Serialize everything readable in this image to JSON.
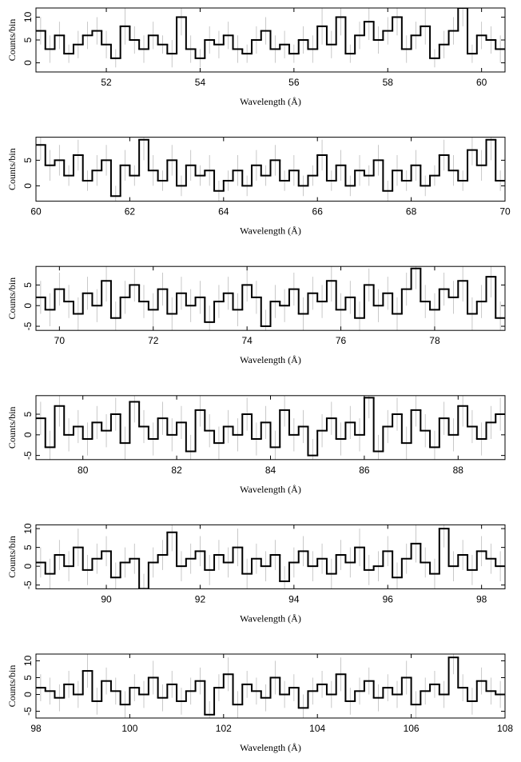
{
  "chart_data": [
    {
      "type": "histogram",
      "x_label": "Wavelength (Å)",
      "y_label": "Counts/bin",
      "bins": [
        50.5,
        50.7,
        50.9,
        51.1,
        51.3,
        51.5,
        51.7,
        51.9,
        52.1,
        52.3,
        52.5,
        52.7,
        52.9,
        53.1,
        53.3,
        53.5,
        53.7,
        53.9,
        54.1,
        54.3,
        54.5,
        54.7,
        54.9,
        55.1,
        55.3,
        55.5,
        55.7,
        55.9,
        56.1,
        56.3,
        56.5,
        56.7,
        56.9,
        57.1,
        57.3,
        57.5,
        57.7,
        57.9,
        58.1,
        58.3,
        58.5,
        58.7,
        58.9,
        59.1,
        59.3,
        59.5,
        59.7,
        59.9,
        60.1,
        60.3,
        60.5
      ],
      "values": [
        7,
        3,
        6,
        2,
        4,
        6,
        7,
        4,
        1,
        8,
        5,
        3,
        6,
        4,
        2,
        10,
        3,
        1,
        5,
        4,
        6,
        3,
        2,
        5,
        7,
        3,
        4,
        2,
        5,
        3,
        8,
        4,
        10,
        2,
        6,
        9,
        5,
        7,
        10,
        3,
        6,
        8,
        1,
        4,
        7,
        12,
        2,
        6,
        5,
        3
      ],
      "errors": [
        3,
        3,
        3,
        2,
        3,
        3,
        3,
        3,
        2,
        4,
        3,
        3,
        3,
        2,
        3,
        4,
        3,
        2,
        3,
        3,
        3,
        3,
        2,
        3,
        3,
        3,
        3,
        2,
        3,
        3,
        4,
        3,
        4,
        2,
        3,
        4,
        3,
        3,
        4,
        3,
        3,
        4,
        2,
        3,
        3,
        4,
        2,
        3,
        3,
        3
      ],
      "xlim": [
        50.5,
        60.5
      ],
      "ylim": [
        -2,
        12
      ],
      "xticks": [
        52,
        54,
        56,
        58,
        60
      ],
      "yticks": [
        0,
        5,
        10
      ]
    },
    {
      "type": "histogram",
      "x_label": "Wavelength (Å)",
      "y_label": "Counts/bin",
      "bins": [
        60,
        60.2,
        60.4,
        60.6,
        60.8,
        61,
        61.2,
        61.4,
        61.6,
        61.8,
        62,
        62.2,
        62.4,
        62.6,
        62.8,
        63,
        63.2,
        63.4,
        63.6,
        63.8,
        64,
        64.2,
        64.4,
        64.6,
        64.8,
        65,
        65.2,
        65.4,
        65.6,
        65.8,
        66,
        66.2,
        66.4,
        66.6,
        66.8,
        67,
        67.2,
        67.4,
        67.6,
        67.8,
        68,
        68.2,
        68.4,
        68.6,
        68.8,
        69,
        69.2,
        69.4,
        69.6,
        69.8,
        70
      ],
      "values": [
        8,
        4,
        5,
        2,
        6,
        1,
        3,
        5,
        -2,
        4,
        2,
        9,
        3,
        1,
        5,
        0,
        4,
        2,
        3,
        -1,
        1,
        3,
        0,
        4,
        2,
        5,
        1,
        3,
        0,
        2,
        6,
        1,
        4,
        0,
        3,
        2,
        5,
        -1,
        3,
        1,
        4,
        0,
        2,
        6,
        3,
        1,
        7,
        4,
        9,
        1
      ],
      "errors": [
        3,
        3,
        3,
        2,
        3,
        2,
        3,
        3,
        2,
        3,
        2,
        4,
        3,
        2,
        3,
        2,
        3,
        2,
        3,
        2,
        2,
        3,
        2,
        3,
        2,
        3,
        2,
        3,
        2,
        2,
        3,
        2,
        3,
        2,
        3,
        2,
        3,
        2,
        3,
        2,
        3,
        2,
        2,
        3,
        3,
        2,
        3,
        3,
        4,
        2
      ],
      "xlim": [
        60,
        70
      ],
      "ylim": [
        -3,
        9.5
      ],
      "xticks": [
        60,
        62,
        64,
        66,
        68,
        70
      ],
      "yticks": [
        0,
        5
      ]
    },
    {
      "type": "histogram",
      "x_label": "Wavelength (Å)",
      "y_label": "Counts/bin",
      "bins": [
        69.5,
        69.7,
        69.9,
        70.1,
        70.3,
        70.5,
        70.7,
        70.9,
        71.1,
        71.3,
        71.5,
        71.7,
        71.9,
        72.1,
        72.3,
        72.5,
        72.7,
        72.9,
        73.1,
        73.3,
        73.5,
        73.7,
        73.9,
        74.1,
        74.3,
        74.5,
        74.7,
        74.9,
        75.1,
        75.3,
        75.5,
        75.7,
        75.9,
        76.1,
        76.3,
        76.5,
        76.7,
        76.9,
        77.1,
        77.3,
        77.5,
        77.7,
        77.9,
        78.1,
        78.3,
        78.5,
        78.7,
        78.9,
        79.1,
        79.3,
        79.5
      ],
      "values": [
        2,
        -1,
        4,
        1,
        -2,
        3,
        0,
        6,
        -3,
        2,
        5,
        1,
        -1,
        4,
        -2,
        3,
        0,
        2,
        -4,
        1,
        3,
        -1,
        5,
        2,
        -5,
        1,
        0,
        4,
        -2,
        3,
        1,
        6,
        -1,
        2,
        -3,
        5,
        0,
        3,
        -2,
        4,
        9,
        1,
        -1,
        4,
        2,
        6,
        -2,
        1,
        7,
        -3
      ],
      "errors": [
        4,
        4,
        4,
        4,
        4,
        4,
        4,
        5,
        4,
        4,
        4,
        4,
        4,
        4,
        4,
        4,
        4,
        4,
        4,
        4,
        4,
        4,
        4,
        4,
        4,
        4,
        4,
        4,
        4,
        4,
        4,
        5,
        4,
        4,
        4,
        4,
        4,
        4,
        4,
        4,
        5,
        4,
        4,
        4,
        4,
        5,
        4,
        4,
        5,
        4
      ],
      "xlim": [
        69.5,
        79.5
      ],
      "ylim": [
        -6,
        9.5
      ],
      "xticks": [
        70,
        72,
        74,
        76,
        78
      ],
      "yticks": [
        -5,
        0,
        5
      ]
    },
    {
      "type": "histogram",
      "x_label": "Wavelength (Å)",
      "y_label": "Counts/bin",
      "bins": [
        79,
        79.2,
        79.4,
        79.6,
        79.8,
        80,
        80.2,
        80.4,
        80.6,
        80.8,
        81,
        81.2,
        81.4,
        81.6,
        81.8,
        82,
        82.2,
        82.4,
        82.6,
        82.8,
        83,
        83.2,
        83.4,
        83.6,
        83.8,
        84,
        84.2,
        84.4,
        84.6,
        84.8,
        85,
        85.2,
        85.4,
        85.6,
        85.8,
        86,
        86.2,
        86.4,
        86.6,
        86.8,
        87,
        87.2,
        87.4,
        87.6,
        87.8,
        88,
        88.2,
        88.4,
        88.6,
        88.8,
        89
      ],
      "values": [
        4,
        -3,
        7,
        0,
        2,
        -1,
        3,
        1,
        5,
        -2,
        8,
        2,
        -1,
        4,
        0,
        3,
        -4,
        6,
        1,
        -2,
        2,
        0,
        5,
        -1,
        3,
        -3,
        6,
        0,
        2,
        -5,
        1,
        4,
        -1,
        3,
        0,
        9,
        -4,
        2,
        5,
        -2,
        6,
        1,
        -3,
        4,
        0,
        7,
        2,
        -1,
        3,
        5
      ],
      "errors": [
        4,
        4,
        5,
        4,
        4,
        4,
        4,
        4,
        4,
        4,
        5,
        4,
        4,
        4,
        4,
        4,
        4,
        4,
        4,
        4,
        4,
        4,
        4,
        4,
        4,
        4,
        4,
        4,
        4,
        4,
        4,
        4,
        4,
        4,
        4,
        5,
        4,
        4,
        4,
        4,
        4,
        4,
        4,
        4,
        4,
        5,
        4,
        4,
        4,
        4
      ],
      "xlim": [
        79,
        89
      ],
      "ylim": [
        -6,
        9.5
      ],
      "xticks": [
        80,
        82,
        84,
        86,
        88
      ],
      "yticks": [
        -5,
        0,
        5
      ]
    },
    {
      "type": "histogram",
      "x_label": "Wavelength (Å)",
      "y_label": "Counts/bin",
      "bins": [
        88.5,
        88.7,
        88.9,
        89.1,
        89.3,
        89.5,
        89.7,
        89.9,
        90.1,
        90.3,
        90.5,
        90.7,
        90.9,
        91.1,
        91.3,
        91.5,
        91.7,
        91.9,
        92.1,
        92.3,
        92.5,
        92.7,
        92.9,
        93.1,
        93.3,
        93.5,
        93.7,
        93.9,
        94.1,
        94.3,
        94.5,
        94.7,
        94.9,
        95.1,
        95.3,
        95.5,
        95.7,
        95.9,
        96.1,
        96.3,
        96.5,
        96.7,
        96.9,
        97.1,
        97.3,
        97.5,
        97.7,
        97.9,
        98.1,
        98.3,
        98.5
      ],
      "values": [
        1,
        -2,
        3,
        0,
        5,
        -1,
        2,
        4,
        -3,
        1,
        2,
        -6,
        1,
        3,
        9,
        0,
        2,
        4,
        -1,
        3,
        1,
        5,
        -2,
        2,
        0,
        3,
        -4,
        1,
        4,
        0,
        2,
        -2,
        3,
        1,
        5,
        -1,
        0,
        4,
        -3,
        2,
        6,
        1,
        -2,
        10,
        0,
        3,
        -1,
        4,
        2,
        0
      ],
      "errors": [
        4,
        4,
        4,
        4,
        5,
        4,
        4,
        4,
        4,
        4,
        4,
        4,
        4,
        4,
        5,
        4,
        4,
        4,
        4,
        4,
        4,
        5,
        4,
        4,
        4,
        4,
        4,
        4,
        4,
        4,
        4,
        4,
        4,
        4,
        5,
        4,
        4,
        4,
        4,
        4,
        5,
        4,
        4,
        5,
        4,
        4,
        4,
        4,
        4,
        4
      ],
      "xlim": [
        88.5,
        98.5
      ],
      "ylim": [
        -6,
        11
      ],
      "xticks": [
        90,
        92,
        94,
        96,
        98
      ],
      "yticks": [
        -5,
        0,
        5,
        10
      ]
    },
    {
      "type": "histogram",
      "x_label": "Wavelength (Å)",
      "y_label": "Counts/bin",
      "bins": [
        98,
        98.2,
        98.4,
        98.6,
        98.8,
        99,
        99.2,
        99.4,
        99.6,
        99.8,
        100,
        100.2,
        100.4,
        100.6,
        100.8,
        101,
        101.2,
        101.4,
        101.6,
        101.8,
        102,
        102.2,
        102.4,
        102.6,
        102.8,
        103,
        103.2,
        103.4,
        103.6,
        103.8,
        104,
        104.2,
        104.4,
        104.6,
        104.8,
        105,
        105.2,
        105.4,
        105.6,
        105.8,
        106,
        106.2,
        106.4,
        106.6,
        106.8,
        107,
        107.2,
        107.4,
        107.6,
        107.8,
        108
      ],
      "values": [
        2,
        1,
        -1,
        3,
        0,
        7,
        -2,
        4,
        1,
        -3,
        2,
        0,
        5,
        -1,
        3,
        -2,
        1,
        4,
        -6,
        2,
        6,
        -3,
        3,
        1,
        -1,
        5,
        0,
        2,
        -4,
        1,
        3,
        0,
        6,
        -2,
        1,
        4,
        -1,
        2,
        0,
        5,
        -3,
        1,
        3,
        0,
        11,
        2,
        -2,
        4,
        1,
        0
      ],
      "errors": [
        4,
        4,
        4,
        4,
        4,
        5,
        4,
        4,
        4,
        4,
        4,
        4,
        5,
        4,
        4,
        4,
        4,
        4,
        4,
        4,
        5,
        4,
        4,
        4,
        4,
        5,
        4,
        4,
        4,
        4,
        4,
        4,
        5,
        4,
        4,
        4,
        4,
        4,
        4,
        5,
        4,
        4,
        4,
        4,
        5,
        4,
        4,
        4,
        4,
        4
      ],
      "xlim": [
        98,
        108
      ],
      "ylim": [
        -7,
        12
      ],
      "xticks": [
        98,
        100,
        102,
        104,
        106,
        108
      ],
      "yticks": [
        -5,
        0,
        5,
        10
      ]
    }
  ]
}
